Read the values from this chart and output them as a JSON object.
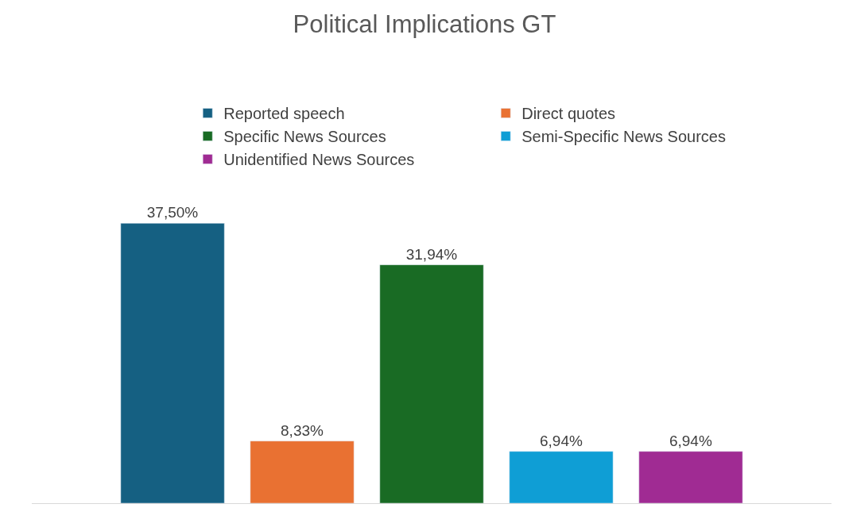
{
  "chart_data": {
    "type": "bar",
    "title": "Political Implications GT",
    "categories": [
      null
    ],
    "series": [
      {
        "name": "Reported speech",
        "color": "#156082",
        "values": [
          37.5
        ],
        "value_labels": [
          "37,50%"
        ]
      },
      {
        "name": "Direct quotes",
        "color": "#e97132",
        "values": [
          8.33
        ],
        "value_labels": [
          "8,33%"
        ]
      },
      {
        "name": "Specific News Sources",
        "color": "#196b24",
        "values": [
          31.94
        ],
        "value_labels": [
          "31,94%"
        ]
      },
      {
        "name": "Semi-Specific News Sources",
        "color": "#0f9ed5",
        "values": [
          6.94
        ],
        "value_labels": [
          "6,94%"
        ]
      },
      {
        "name": "Unidentified News Sources",
        "color": "#a02b93",
        "values": [
          6.94
        ],
        "value_labels": [
          "6,94%"
        ]
      }
    ],
    "legend": "top"
  }
}
